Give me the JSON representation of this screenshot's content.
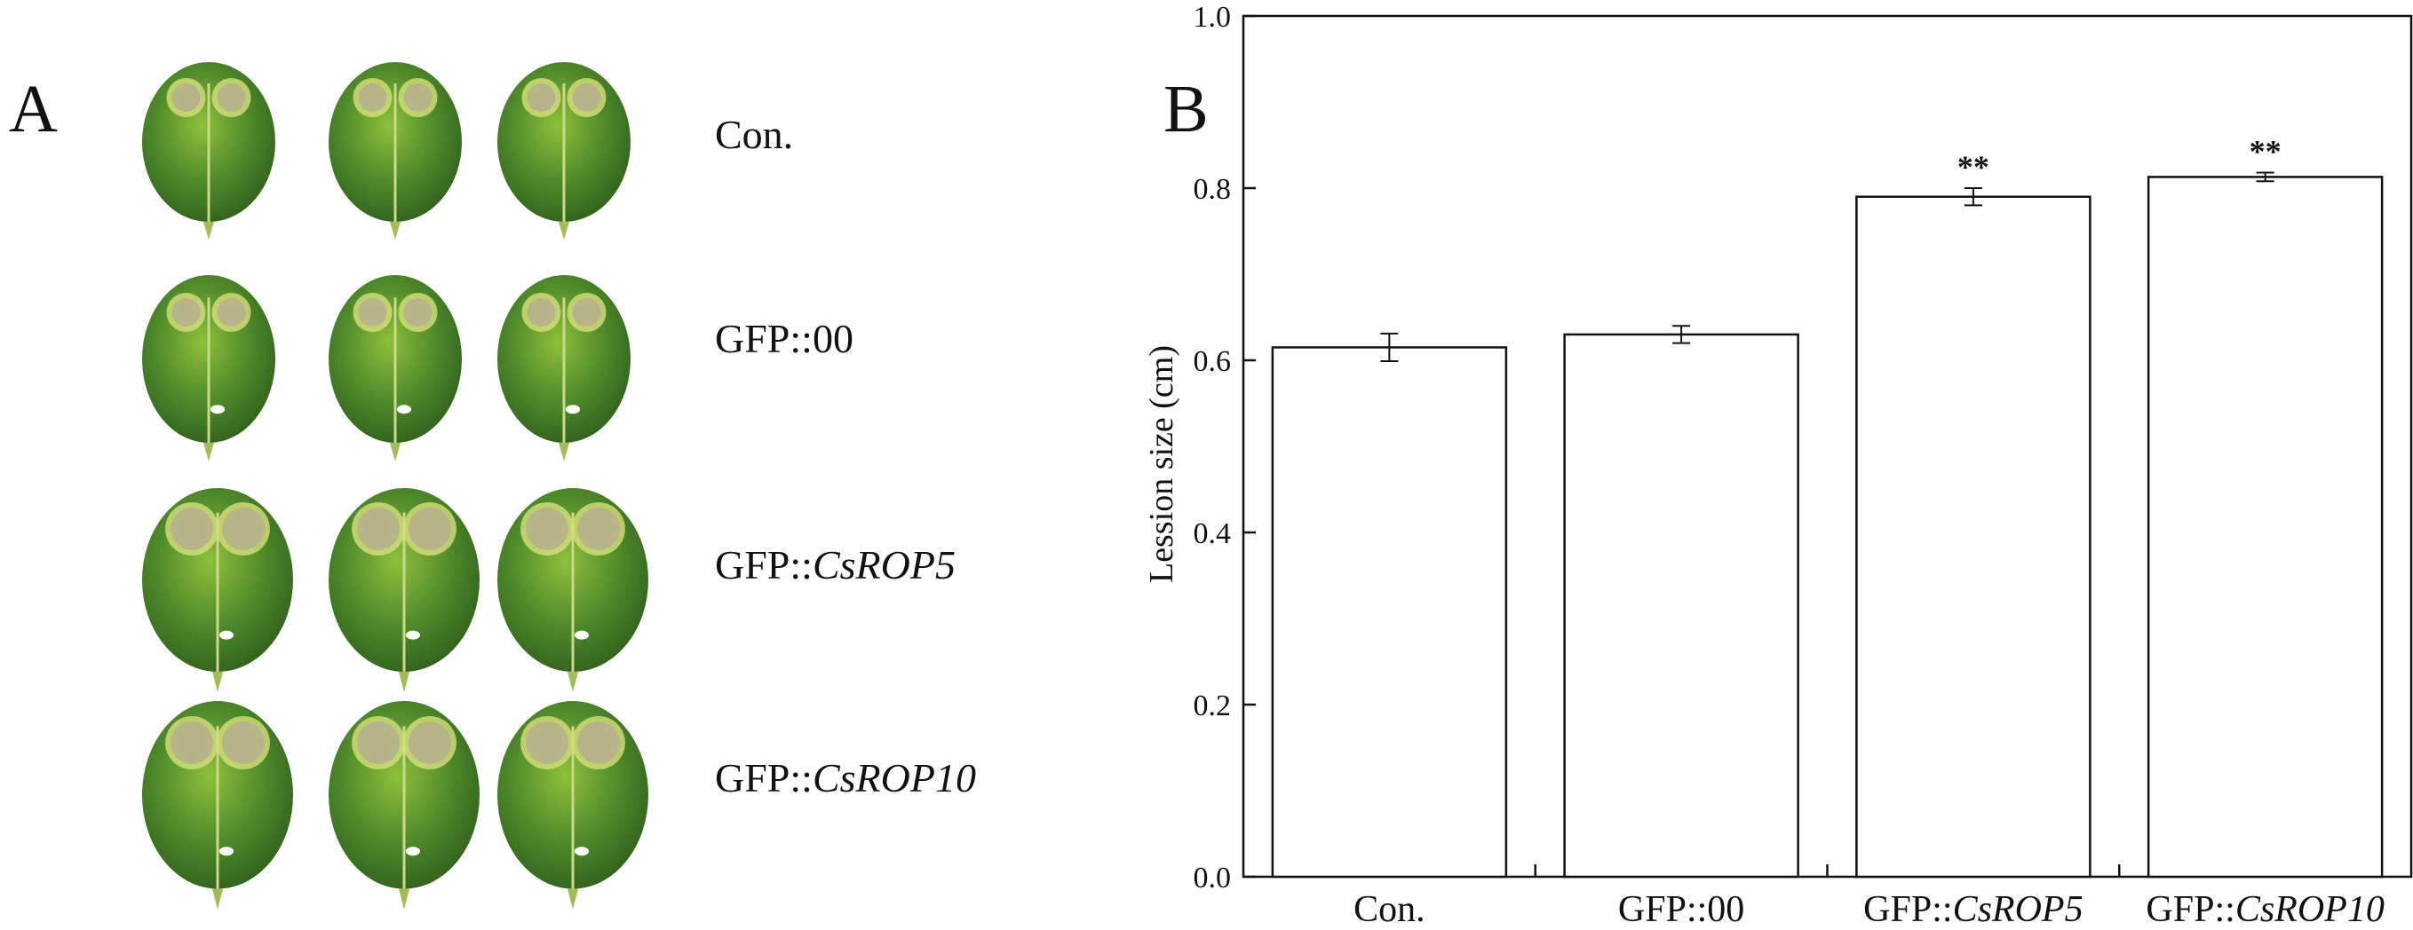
{
  "panel_a": {
    "label": "A",
    "rows": [
      {
        "name": "Con.",
        "prefix": "Con.",
        "italic": ""
      },
      {
        "name": "GFP::00",
        "prefix": "GFP::00",
        "italic": ""
      },
      {
        "name": "GFP::CsROP5",
        "prefix": "GFP::",
        "italic": "CsROP5"
      },
      {
        "name": "GFP::CsROP10",
        "prefix": "GFP::",
        "italic": "CsROP10"
      }
    ],
    "colors": {
      "leaf_dark": "#2f5e1c",
      "leaf_mid": "#4f8a2a",
      "leaf_light": "#8fbf3c",
      "lesion": "#b7b48a",
      "lesion_halo": "#d7e07a"
    }
  },
  "panel_b": {
    "label": "B",
    "chart_data": {
      "type": "bar",
      "categories": [
        "Con.",
        "GFP::00",
        "GFP::CsROP5",
        "GFP::CsROP10"
      ],
      "category_parts": [
        {
          "prefix": "Con.",
          "italic": ""
        },
        {
          "prefix": "GFP::00",
          "italic": ""
        },
        {
          "prefix": "GFP::",
          "italic": "CsROP5"
        },
        {
          "prefix": "GFP::",
          "italic": "CsROP10"
        }
      ],
      "values": [
        0.615,
        0.63,
        0.79,
        0.813
      ],
      "errors": [
        0.016,
        0.01,
        0.01,
        0.005
      ],
      "significance": [
        "",
        "",
        "**",
        "**"
      ],
      "ylabel": "Lession size (cm)",
      "xlabel": "",
      "title": "",
      "ylim": [
        0.0,
        1.0
      ],
      "yticks": [
        "0.0",
        "0.2",
        "0.4",
        "0.6",
        "0.8",
        "1.0"
      ],
      "grid": false,
      "bar_fill": "#ffffff",
      "bar_stroke": "#111111"
    }
  }
}
